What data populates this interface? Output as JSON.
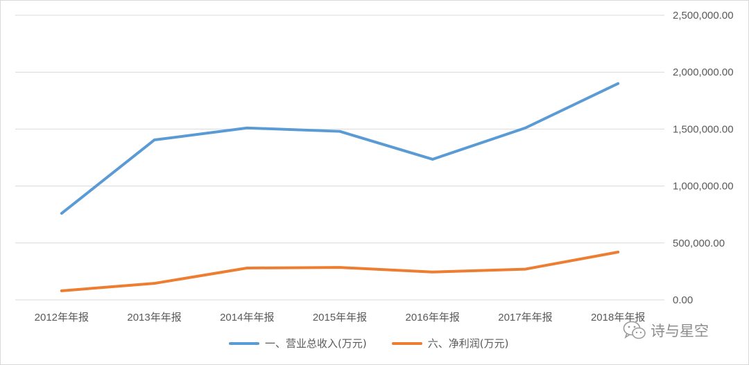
{
  "chart_data": {
    "type": "line",
    "categories": [
      "2012年年报",
      "2013年年报",
      "2014年年报",
      "2015年年报",
      "2016年年报",
      "2017年年报",
      "2018年年报"
    ],
    "series": [
      {
        "name": "一、营业总收入(万元)",
        "color": "#5b9bd5",
        "values": [
          760000,
          1405000,
          1510000,
          1480000,
          1235000,
          1510000,
          1900000
        ]
      },
      {
        "name": "六、净利润(万元)",
        "color": "#ed7d31",
        "values": [
          80000,
          145000,
          280000,
          285000,
          245000,
          270000,
          420000
        ]
      }
    ],
    "y_ticks": [
      "0.00",
      "500,000.00",
      "1,000,000.00",
      "1,500,000.00",
      "2,000,000.00",
      "2,500,000.00"
    ],
    "ylim": [
      0,
      2500000
    ],
    "y_axis_side": "right",
    "grid": true,
    "legend_position": "bottom"
  },
  "watermark": {
    "text": "诗与星空",
    "icon": "wechat-icon"
  }
}
